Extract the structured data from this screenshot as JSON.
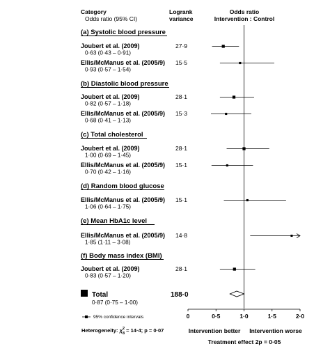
{
  "chart_data": {
    "type": "forest",
    "header": {
      "category": "Category",
      "category_sub": "Odds ratio (95% CI)",
      "logrank_1": "Logrank",
      "logrank_2": "variance",
      "or_1": "Odds ratio",
      "or_2": "Intervention : Control"
    },
    "xlim": [
      0,
      2
    ],
    "x_ticks": [
      {
        "value": 0,
        "label": "0"
      },
      {
        "value": 0.5,
        "label": "0·5"
      },
      {
        "value": 1,
        "label": "1·0"
      },
      {
        "value": 1.5,
        "label": "1·5"
      },
      {
        "value": 2,
        "label": "2·0"
      }
    ],
    "x_left_label": "Intervention better",
    "x_right_label": "Intervention worse",
    "sections": [
      {
        "title": "(a) Systolic blood pressure",
        "rows": [
          {
            "study": "Joubert et al. (2009)",
            "ci_text": "0·63 (0·43 – 0·91)",
            "variance": "27·9",
            "or": 0.63,
            "lo": 0.43,
            "hi": 0.91
          },
          {
            "study": "Ellis/McManus et al. (2005/9)",
            "ci_text": "0·93 (0·57 – 1·54)",
            "variance": "15·5",
            "or": 0.93,
            "lo": 0.57,
            "hi": 1.54
          }
        ]
      },
      {
        "title": "(b) Diastolic blood pressure",
        "rows": [
          {
            "study": "Joubert et al. (2009)",
            "ci_text": "0·82 (0·57 – 1·18)",
            "variance": "28·1",
            "or": 0.82,
            "lo": 0.57,
            "hi": 1.18
          },
          {
            "study": "Ellis/McManus et al. (2005/9)",
            "ci_text": "0·68 (0·41 – 1·13)",
            "variance": "15·3",
            "or": 0.68,
            "lo": 0.41,
            "hi": 1.13
          }
        ]
      },
      {
        "title": "(c) Total cholesterol",
        "rows": [
          {
            "study": "Joubert et al. (2009)",
            "ci_text": "1·00 (0·69 – 1·45)",
            "variance": "28·1",
            "or": 1.0,
            "lo": 0.69,
            "hi": 1.45
          },
          {
            "study": "Ellis/McManus et al. (2005/9)",
            "ci_text": "0·70 (0·42 – 1·16)",
            "variance": "15·1",
            "or": 0.7,
            "lo": 0.42,
            "hi": 1.16
          }
        ]
      },
      {
        "title": "(d) Random blood glucose",
        "rows": [
          {
            "study": "Ellis/McManus et al. (2005/9)",
            "ci_text": "1·06 (0·64 – 1·75)",
            "variance": "15·1",
            "or": 1.06,
            "lo": 0.64,
            "hi": 1.75
          }
        ]
      },
      {
        "title": "(e) Mean HbA1c level",
        "rows": [
          {
            "study": "Ellis/McManus et al. (2005/9)",
            "ci_text": "1·85 (1·11 – 3·08)",
            "variance": "14·8",
            "or": 1.85,
            "lo": 1.11,
            "hi": 3.08
          }
        ]
      },
      {
        "title": "(f) Body mass index (BMI)",
        "rows": [
          {
            "study": "Joubert et al. (2009)",
            "ci_text": "0·83 (0·57 – 1·20)",
            "variance": "28·1",
            "or": 0.83,
            "lo": 0.57,
            "hi": 1.2
          }
        ]
      }
    ],
    "total": {
      "label": "Total",
      "ci_text": "0·87 (0·75 – 1·00)",
      "variance": "188·0",
      "or": 0.87,
      "lo": 0.75,
      "hi": 1.0
    },
    "legend_text": "95% confidence intervals",
    "heterogeneity_prefix": "Heterogeneity: ",
    "heterogeneity_chi": "χ",
    "heterogeneity_sup": "2",
    "heterogeneity_sub": "8",
    "heterogeneity_rest": " = 14·4; p = 0·07",
    "treatment_effect": "Treatment effect 2p = 0·05"
  }
}
